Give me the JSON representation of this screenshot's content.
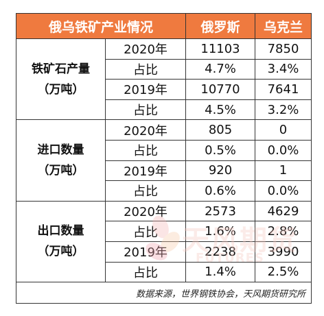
{
  "table": {
    "header": {
      "title": "俄乌铁矿产业情况",
      "col1": "俄罗斯",
      "col2": "乌克兰"
    },
    "groups": [
      {
        "category": "铁矿石产量",
        "unit": "（万吨）",
        "rows": [
          {
            "label": "2020年",
            "ru": "11103",
            "ua": "7850"
          },
          {
            "label": "占比",
            "ru": "4.7%",
            "ua": "3.4%"
          },
          {
            "label": "2019年",
            "ru": "10770",
            "ua": "7641"
          },
          {
            "label": "占比",
            "ru": "4.5%",
            "ua": "3.2%"
          }
        ]
      },
      {
        "category": "进口数量",
        "unit": "（万吨）",
        "rows": [
          {
            "label": "2020年",
            "ru": "805",
            "ua": "0"
          },
          {
            "label": "占比",
            "ru": "0.5%",
            "ua": "0.0%"
          },
          {
            "label": "2019年",
            "ru": "920",
            "ua": "1"
          },
          {
            "label": "占比",
            "ru": "0.6%",
            "ua": "0.0%"
          }
        ]
      },
      {
        "category": "出口数量",
        "unit": "（万吨）",
        "rows": [
          {
            "label": "2020年",
            "ru": "2573",
            "ua": "4629"
          },
          {
            "label": "占比",
            "ru": "1.6%",
            "ua": "2.8%"
          },
          {
            "label": "2019年",
            "ru": "2238",
            "ua": "3990"
          },
          {
            "label": "占比",
            "ru": "1.4%",
            "ua": "2.5%"
          }
        ]
      }
    ],
    "footer": "数据来源，世界钢铁协会，天风期货研究所"
  },
  "watermark": {
    "text": "天风期货",
    "subtext": "FUTURES"
  },
  "colors": {
    "header_bg": "#ef7a3f",
    "header_text": "#ffffff",
    "border": "#333333"
  }
}
